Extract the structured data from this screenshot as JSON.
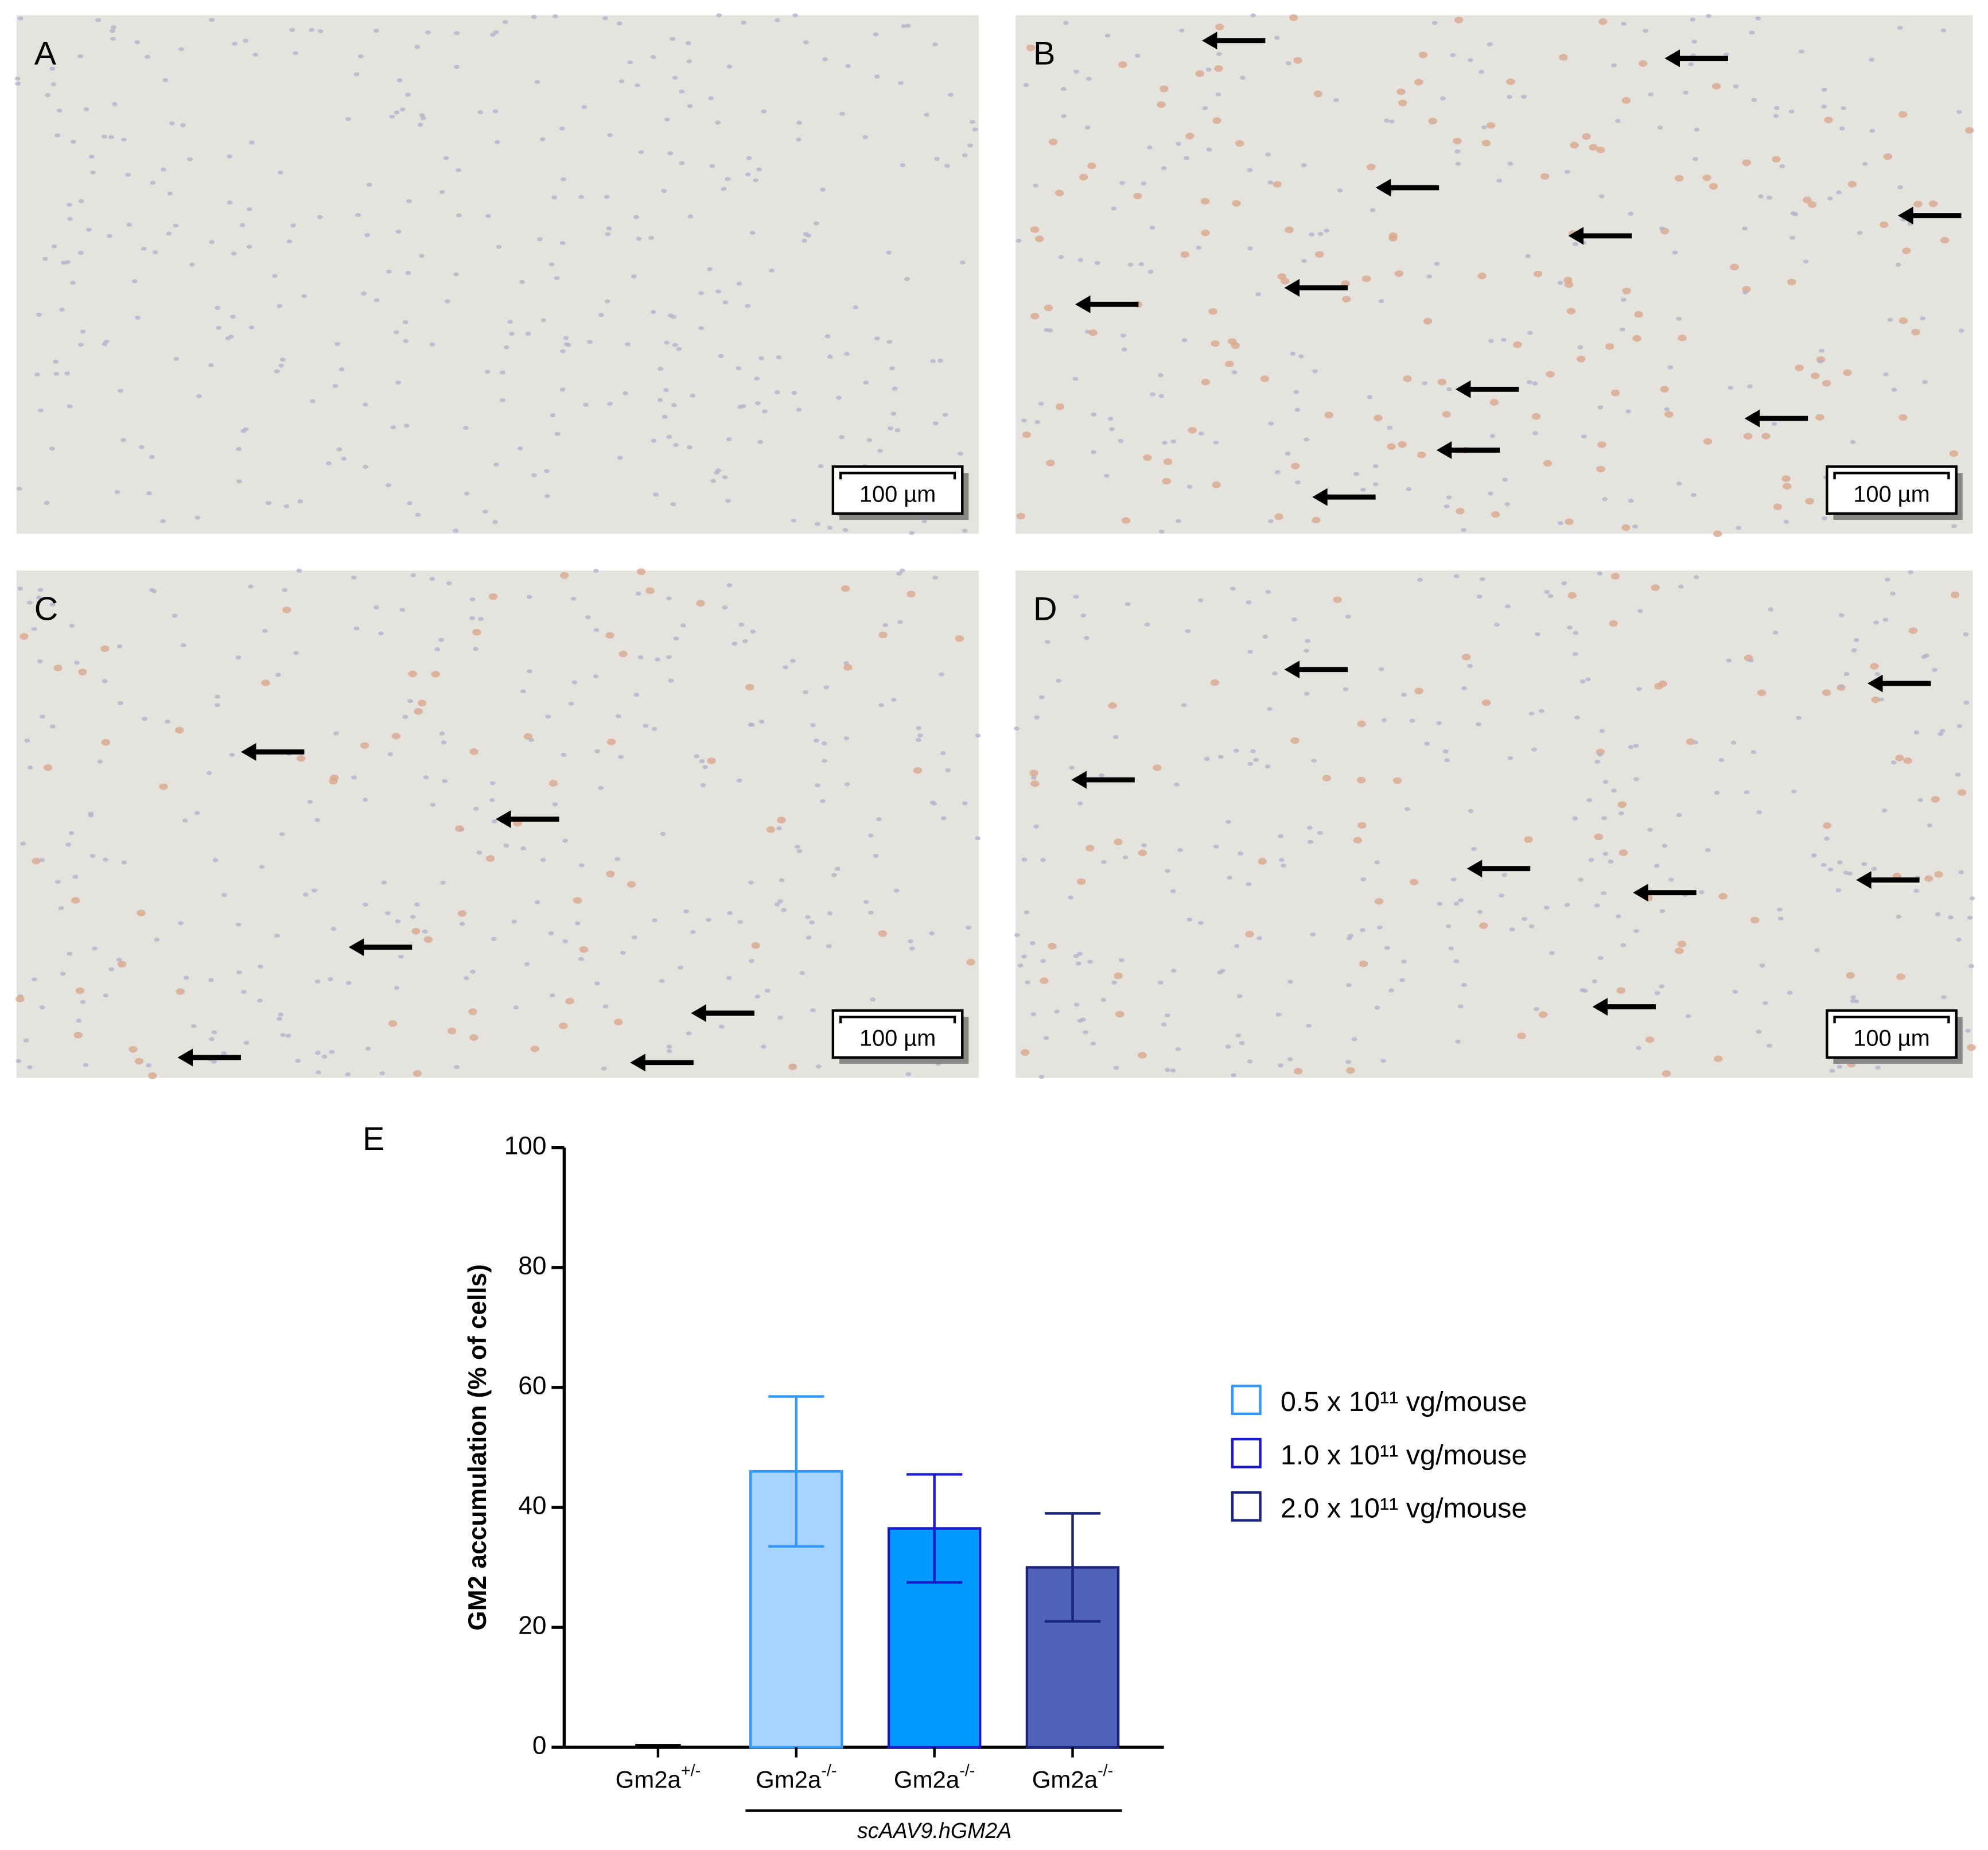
{
  "panels": [
    {
      "label": "A",
      "scale_bar": "100 µm"
    },
    {
      "label": "B",
      "scale_bar": "100 µm"
    },
    {
      "label": "C",
      "scale_bar": "100 µm"
    },
    {
      "label": "D",
      "scale_bar": "100 µm"
    }
  ],
  "chart_data": {
    "type": "bar",
    "label": "E",
    "ylabel": "GM2 accumulation (% of cells)",
    "categories": [
      {
        "text": "Gm2a",
        "sup": "+/-"
      },
      {
        "text": "Gm2a",
        "sup": "-/-"
      },
      {
        "text": "Gm2a",
        "sup": "-/-"
      },
      {
        "text": "Gm2a",
        "sup": "-/-"
      }
    ],
    "values": [
      0.3,
      46,
      36.5,
      30
    ],
    "errors": [
      null,
      12.5,
      9,
      9
    ],
    "colors": [
      "#000000",
      "#a6d3ff",
      "#0099ff",
      "#4f63b8"
    ],
    "edge_colors": [
      "#000000",
      "#3399ff",
      "#1a1acc",
      "#1a237e"
    ],
    "group_label": "scAAV9.hGM2A",
    "legend": [
      {
        "name": "0.5 x 10¹¹ vg/mouse",
        "color": "#3399ff"
      },
      {
        "name": "1.0 x 10¹¹ vg/mouse",
        "color": "#1a1acc"
      },
      {
        "name": "2.0 x 10¹¹ vg/mouse",
        "color": "#1a237e"
      }
    ],
    "ylim": [
      0,
      100
    ],
    "yticks": [
      0,
      20,
      40,
      60,
      80,
      100
    ]
  }
}
